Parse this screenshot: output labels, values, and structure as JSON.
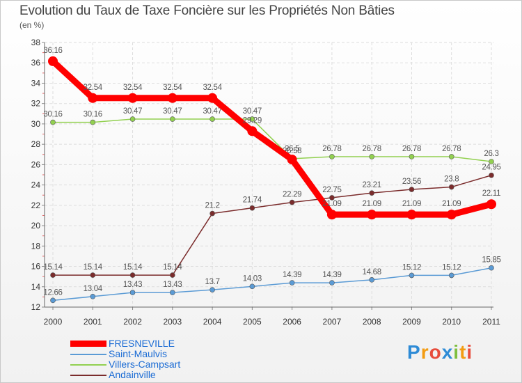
{
  "title": "Evolution du Taux de Taxe Foncière sur les Propriétés Non Bâties",
  "unit": "(en %)",
  "brand": "Proxiti",
  "chart_data": {
    "type": "line",
    "x": [
      "2000",
      "2001",
      "2002",
      "2003",
      "2004",
      "2005",
      "2006",
      "2007",
      "2008",
      "2009",
      "2010",
      "2011"
    ],
    "ylim": [
      12,
      38
    ],
    "yticks": [
      12,
      14,
      16,
      18,
      20,
      22,
      24,
      26,
      28,
      30,
      32,
      34,
      36,
      38
    ],
    "grid": true,
    "legend_position": "bottom-left",
    "series": [
      {
        "name": "FRESNEVILLE",
        "color": "#ff0000",
        "values": [
          36.16,
          32.54,
          32.54,
          32.54,
          32.54,
          29.29,
          26.5,
          21.09,
          21.09,
          21.09,
          21.09,
          22.11
        ],
        "labels": [
          "36.16",
          "32.54",
          "32.54",
          "32.54",
          "32.54",
          "29.29",
          "26.5",
          "21.09",
          "21.09",
          "21.09",
          "21.09",
          "22.11"
        ]
      },
      {
        "name": "Saint-Maulvis",
        "color": "#5b9bd5",
        "values": [
          12.66,
          13.04,
          13.43,
          13.43,
          13.7,
          14.03,
          14.39,
          14.39,
          14.68,
          15.12,
          15.12,
          15.85
        ],
        "labels": [
          "12.66",
          "13.04",
          "13.43",
          "13.43",
          "13.7",
          "14.03",
          "14.39",
          "14.39",
          "14.68",
          "15.12",
          "15.12",
          "15.85"
        ]
      },
      {
        "name": "Villers-Campsart",
        "color": "#92d050",
        "values": [
          30.16,
          30.16,
          30.47,
          30.47,
          30.47,
          30.47,
          26.58,
          26.78,
          26.78,
          26.78,
          26.78,
          26.3
        ],
        "labels": [
          "30.16",
          "30.16",
          "30.47",
          "30.47",
          "30.47",
          "30.47",
          "26.58",
          "26.78",
          "26.78",
          "26.78",
          "26.78",
          "26.3"
        ]
      },
      {
        "name": "Andainville",
        "color": "#7b2c2c",
        "values": [
          15.14,
          15.14,
          15.14,
          15.14,
          21.2,
          21.74,
          22.29,
          22.75,
          23.21,
          23.56,
          23.8,
          24.95
        ],
        "labels": [
          "15.14",
          "15.14",
          "15.14",
          "15.14",
          "21.2",
          "21.74",
          "22.29",
          "22.75",
          "23.21",
          "23.56",
          "23.8",
          "24.95"
        ]
      }
    ]
  }
}
